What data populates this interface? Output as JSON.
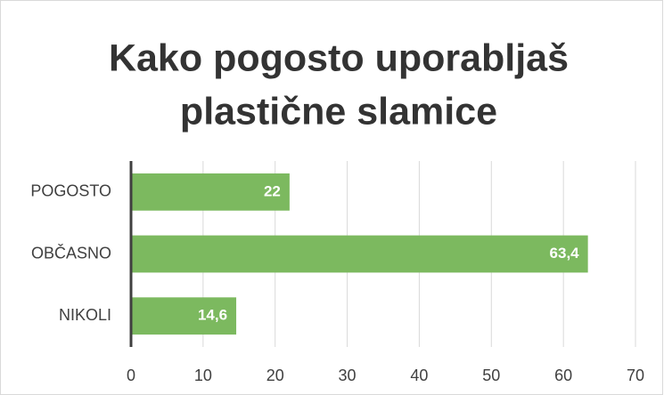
{
  "chart_data": {
    "type": "barh",
    "title": [
      "Kako pogosto uporabljaš",
      "plastične slamice"
    ],
    "categories": [
      "POGOSTO",
      "OBČASNO",
      "NIKOLI"
    ],
    "values": [
      22,
      63.4,
      14.6
    ],
    "value_labels": [
      "22",
      "63,4",
      "14,6"
    ],
    "color": "#7cb95f",
    "xlim": [
      0,
      70
    ],
    "xticks": [
      0,
      10,
      20,
      30,
      40,
      50,
      60,
      70
    ],
    "grid": true
  }
}
